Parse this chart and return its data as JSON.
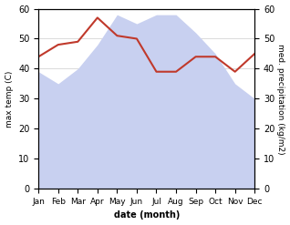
{
  "months": [
    "Jan",
    "Feb",
    "Mar",
    "Apr",
    "May",
    "Jun",
    "Jul",
    "Aug",
    "Sep",
    "Oct",
    "Nov",
    "Dec"
  ],
  "precipitation": [
    39,
    35,
    40,
    48,
    58,
    55,
    58,
    58,
    52,
    45,
    35,
    30
  ],
  "temperature": [
    44,
    48,
    49,
    57,
    51,
    50,
    39,
    39,
    44,
    44,
    39,
    45
  ],
  "temp_color": "#c0392b",
  "precip_fill_color": "#c8d0f0",
  "ylim": [
    0,
    60
  ],
  "xlabel": "date (month)",
  "ylabel_left": "max temp (C)",
  "ylabel_right": "med. precipitation (kg/m2)",
  "background_color": "#ffffff",
  "yticks": [
    0,
    10,
    20,
    30,
    40,
    50,
    60
  ]
}
